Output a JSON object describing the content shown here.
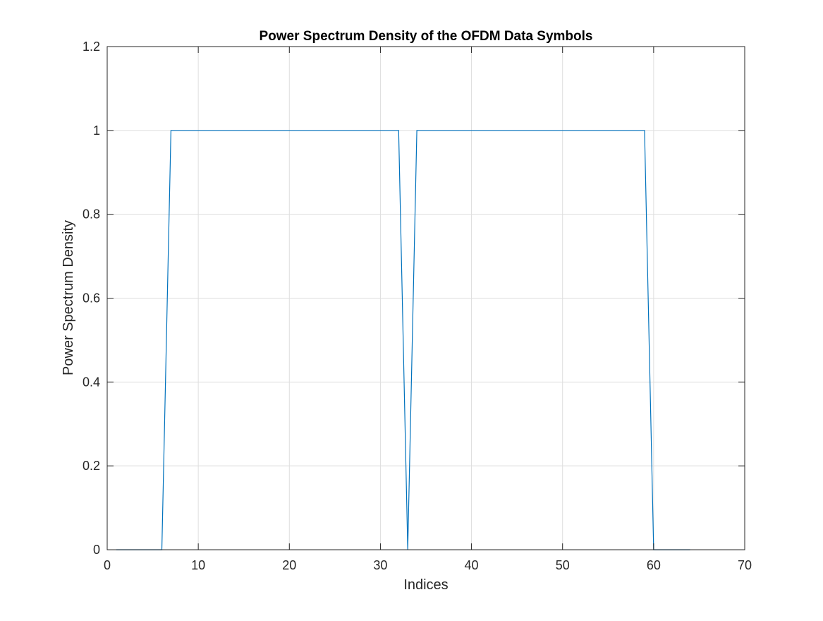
{
  "chart_data": {
    "type": "line",
    "title": "Power Spectrum Density of the OFDM Data Symbols",
    "xlabel": "Indices",
    "ylabel": "Power Spectrum Density",
    "xlim": [
      0,
      70
    ],
    "ylim": [
      0,
      1.2
    ],
    "xticks": [
      "0",
      "10",
      "20",
      "30",
      "40",
      "50",
      "60",
      "70"
    ],
    "yticks": [
      "0",
      "0.2",
      "0.4",
      "0.6",
      "0.8",
      "1",
      "1.2"
    ],
    "grid": true,
    "legend": "none",
    "series": [
      {
        "color": "#0072BD",
        "x": [
          1,
          2,
          3,
          4,
          5,
          6,
          7,
          8,
          9,
          10,
          11,
          12,
          13,
          14,
          15,
          16,
          17,
          18,
          19,
          20,
          21,
          22,
          23,
          24,
          25,
          26,
          27,
          28,
          29,
          30,
          31,
          32,
          33,
          34,
          35,
          36,
          37,
          38,
          39,
          40,
          41,
          42,
          43,
          44,
          45,
          46,
          47,
          48,
          49,
          50,
          51,
          52,
          53,
          54,
          55,
          56,
          57,
          58,
          59,
          60,
          61,
          62,
          63,
          64
        ],
        "y": [
          0,
          0,
          0,
          0,
          0,
          0,
          1,
          1,
          1,
          1,
          1,
          1,
          1,
          1,
          1,
          1,
          1,
          1,
          1,
          1,
          1,
          1,
          1,
          1,
          1,
          1,
          1,
          1,
          1,
          1,
          1,
          1,
          0,
          1,
          1,
          1,
          1,
          1,
          1,
          1,
          1,
          1,
          1,
          1,
          1,
          1,
          1,
          1,
          1,
          1,
          1,
          1,
          1,
          1,
          1,
          1,
          1,
          1,
          1,
          0,
          0,
          0,
          0,
          0
        ]
      }
    ]
  }
}
